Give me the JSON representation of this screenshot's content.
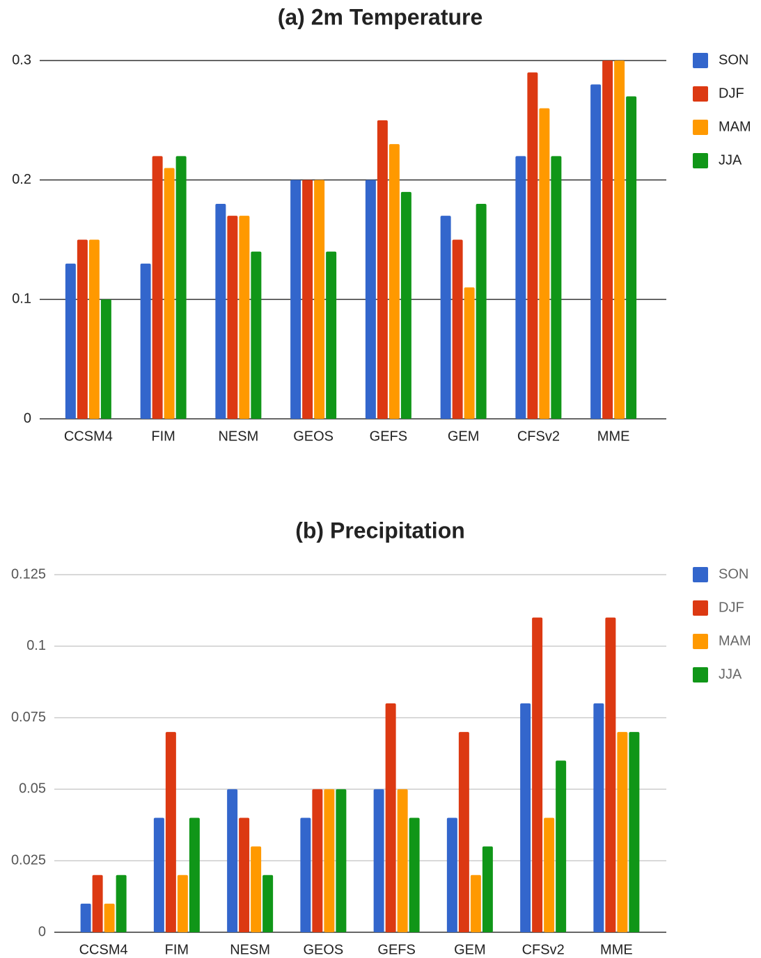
{
  "chart_data": [
    {
      "type": "bar",
      "title": "(a) 2m Temperature",
      "categories": [
        "CCSM4",
        "FIM",
        "NESM",
        "GEOS",
        "GEFS",
        "GEM",
        "CFSv2",
        "MME"
      ],
      "series": [
        {
          "name": "SON",
          "color": "#3366cc",
          "values": [
            0.13,
            0.13,
            0.18,
            0.2,
            0.2,
            0.17,
            0.22,
            0.28
          ]
        },
        {
          "name": "DJF",
          "color": "#dc3912",
          "values": [
            0.15,
            0.22,
            0.17,
            0.2,
            0.25,
            0.15,
            0.29,
            0.3
          ]
        },
        {
          "name": "MAM",
          "color": "#ff9900",
          "values": [
            0.15,
            0.21,
            0.17,
            0.2,
            0.23,
            0.11,
            0.26,
            0.3
          ]
        },
        {
          "name": "JJA",
          "color": "#109618",
          "values": [
            0.1,
            0.22,
            0.14,
            0.14,
            0.19,
            0.18,
            0.22,
            0.27
          ]
        }
      ],
      "ylim": [
        0,
        0.3
      ],
      "yticks": [
        0,
        0.1,
        0.2,
        0.3
      ],
      "grid": true,
      "grid_color": "#333333",
      "legend": "right"
    },
    {
      "type": "bar",
      "title": "(b) Precipitation",
      "categories": [
        "CCSM4",
        "FIM",
        "NESM",
        "GEOS",
        "GEFS",
        "GEM",
        "CFSv2",
        "MME"
      ],
      "series": [
        {
          "name": "SON",
          "color": "#3366cc",
          "values": [
            0.01,
            0.04,
            0.05,
            0.04,
            0.05,
            0.04,
            0.08,
            0.08
          ]
        },
        {
          "name": "DJF",
          "color": "#dc3912",
          "values": [
            0.02,
            0.07,
            0.04,
            0.05,
            0.08,
            0.07,
            0.11,
            0.11
          ]
        },
        {
          "name": "MAM",
          "color": "#ff9900",
          "values": [
            0.01,
            0.02,
            0.03,
            0.05,
            0.05,
            0.02,
            0.04,
            0.07
          ]
        },
        {
          "name": "JJA",
          "color": "#109618",
          "values": [
            0.02,
            0.04,
            0.02,
            0.05,
            0.04,
            0.03,
            0.06,
            0.07
          ]
        }
      ],
      "ylim": [
        0,
        0.125
      ],
      "yticks": [
        0,
        0.025,
        0.05,
        0.075,
        0.1,
        0.125
      ],
      "grid": true,
      "grid_color": "#cccccc",
      "legend": "right"
    }
  ]
}
